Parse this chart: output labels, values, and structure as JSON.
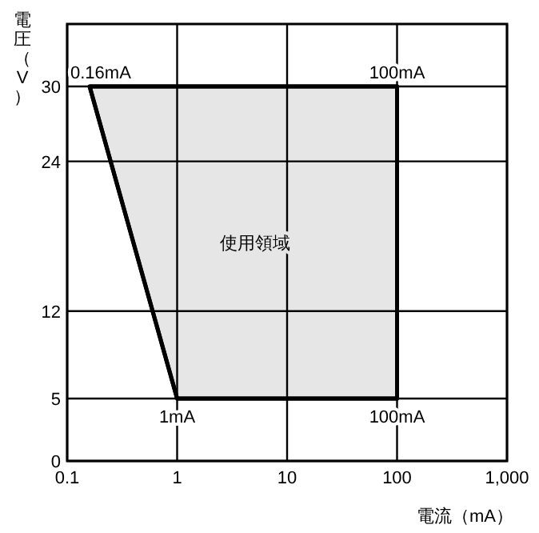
{
  "chart_data": {
    "type": "area",
    "xlabel": "電流（mA）",
    "ylabel": "電圧（V）",
    "log": "x",
    "xlim": [
      0.1,
      1000
    ],
    "xticks": [
      0.1,
      1,
      10,
      100,
      {
        "value": 1000,
        "label": "1,000"
      }
    ],
    "ylim": [
      0,
      35
    ],
    "yticks": [
      0,
      5,
      12,
      24,
      30
    ],
    "grid": true,
    "series": [
      {
        "color": "#e6e6e6",
        "x": [
          0.16,
          100,
          100,
          1,
          0.16
        ],
        "values": [
          30,
          30,
          5,
          5,
          30
        ]
      }
    ],
    "annotations": [
      {
        "text": "0.16mA",
        "x": 0.16,
        "y": 30
      },
      {
        "text": "100mA",
        "x": 100,
        "y": 30
      },
      {
        "text": "1mA",
        "x": 1,
        "y": 5
      },
      {
        "text": "100mA",
        "x": 100,
        "y": 5
      },
      "使用領域"
    ]
  }
}
